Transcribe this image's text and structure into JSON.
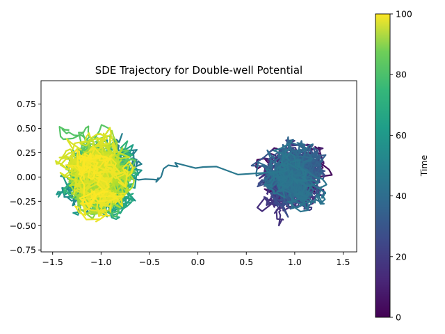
{
  "chart_data": {
    "type": "line",
    "title": "SDE Trajectory for Double-well Potential",
    "xlabel": "",
    "ylabel": "",
    "xlim": [
      -1.62,
      1.64
    ],
    "ylim": [
      -0.77,
      0.99
    ],
    "xticks": [
      -1.5,
      -1.0,
      -0.5,
      0.0,
      0.5,
      1.0,
      1.5
    ],
    "xtick_labels": [
      "−1.5",
      "−1.0",
      "−0.5",
      "0.0",
      "0.5",
      "1.0",
      "1.5"
    ],
    "yticks": [
      -0.75,
      -0.5,
      -0.25,
      0.0,
      0.25,
      0.5,
      0.75
    ],
    "ytick_labels": [
      "−0.75",
      "−0.50",
      "−0.25",
      "0.00",
      "0.25",
      "0.50",
      "0.75"
    ],
    "grid": false,
    "colormap": "viridis",
    "colorbar": {
      "label": "Time",
      "range": [
        0,
        100
      ],
      "ticks": [
        0,
        20,
        40,
        60,
        80,
        100
      ],
      "tick_labels": [
        "0",
        "20",
        "40",
        "60",
        "80",
        "100"
      ]
    },
    "trajectory_summary": {
      "t_range": [
        0,
        100
      ],
      "wells": [
        {
          "center_x": -1.0,
          "center_y": 0.0,
          "times": [
            40,
            100
          ]
        },
        {
          "center_x": 1.0,
          "center_y": 0.0,
          "times": [
            0,
            40
          ]
        }
      ]
    }
  }
}
